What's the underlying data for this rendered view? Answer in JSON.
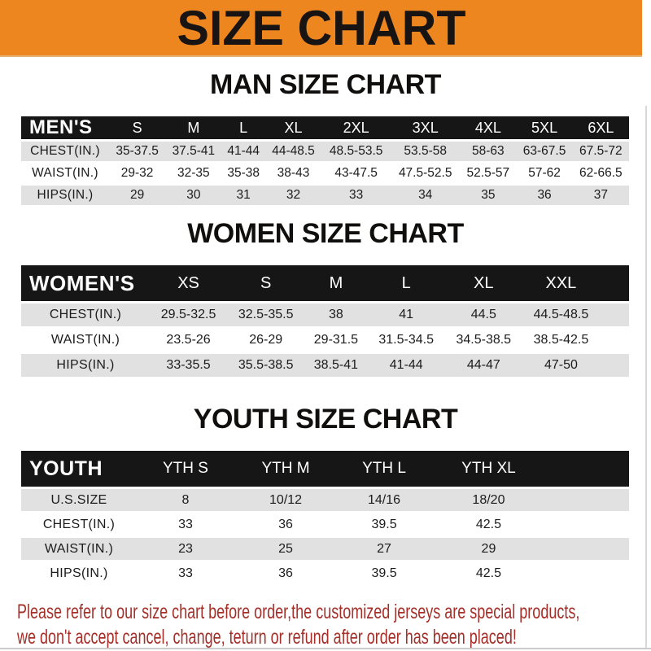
{
  "banner": {
    "title": "SIZE CHART"
  },
  "sections": [
    {
      "id": "men",
      "heading": "MAN SIZE CHART",
      "table": {
        "label": "MEN'S",
        "columns": [
          "S",
          "M",
          "L",
          "XL",
          "2XL",
          "3XL",
          "4XL",
          "5XL",
          "6XL"
        ],
        "rows": [
          {
            "label": "CHEST(IN.)",
            "values": [
              "35-37.5",
              "37.5-41",
              "41-44",
              "44-48.5",
              "48.5-53.5",
              "53.5-58",
              "58-63",
              "63-67.5",
              "67.5-72"
            ]
          },
          {
            "label": "WAIST(IN.)",
            "values": [
              "29-32",
              "32-35",
              "35-38",
              "38-43",
              "43-47.5",
              "47.5-52.5",
              "52.5-57",
              "57-62",
              "62-66.5"
            ]
          },
          {
            "label": "HIPS(IN.)",
            "values": [
              "29",
              "30",
              "31",
              "32",
              "33",
              "34",
              "35",
              "36",
              "37"
            ]
          }
        ]
      }
    },
    {
      "id": "women",
      "heading": "WOMEN SIZE CHART",
      "table": {
        "label": "WOMEN'S",
        "columns": [
          "XS",
          "S",
          "M",
          "L",
          "XL",
          "XXL"
        ],
        "rows": [
          {
            "label": "CHEST(IN.)",
            "values": [
              "29.5-32.5",
              "32.5-35.5",
              "38",
              "41",
              "44.5",
              "44.5-48.5"
            ]
          },
          {
            "label": "WAIST(IN.)",
            "values": [
              "23.5-26",
              "26-29",
              "29-31.5",
              "31.5-34.5",
              "34.5-38.5",
              "38.5-42.5"
            ]
          },
          {
            "label": "HIPS(IN.)",
            "values": [
              "33-35.5",
              "35.5-38.5",
              "38.5-41",
              "41-44",
              "44-47",
              "47-50"
            ]
          }
        ]
      }
    },
    {
      "id": "youth",
      "heading": "YOUTH SIZE CHART",
      "table": {
        "label": "YOUTH",
        "columns": [
          "YTH S",
          "YTH M",
          "YTH L",
          "YTH XL"
        ],
        "rows": [
          {
            "label": "U.S.SIZE",
            "values": [
              "8",
              "10/12",
              "14/16",
              "18/20"
            ]
          },
          {
            "label": "CHEST(IN.)",
            "values": [
              "33",
              "36",
              "39.5",
              "42.5"
            ]
          },
          {
            "label": "WAIST(IN.)",
            "values": [
              "23",
              "25",
              "27",
              "29"
            ]
          },
          {
            "label": "HIPS(IN.)",
            "values": [
              "33",
              "36",
              "39.5",
              "42.5"
            ]
          }
        ]
      }
    }
  ],
  "footer": {
    "line1": "Please refer to our size chart before order,the customized jerseys are special products,",
    "line2": "we don't accept cancel, change, teturn or refund after order has been placed!"
  },
  "colors": {
    "banner_bg": "#ED861F",
    "header_bar": "#161616",
    "row_gray": "#E1E1E1",
    "notice_red": "#A5302A"
  }
}
